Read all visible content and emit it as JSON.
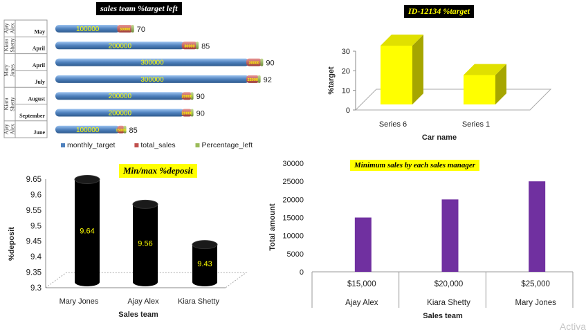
{
  "chart_data": [
    {
      "type": "bar",
      "orientation": "horizontal",
      "stacked": true,
      "title": "sales team %target left",
      "categories": [
        {
          "group": "Ajay Alex",
          "month": "May"
        },
        {
          "group": "Kiara Shetty",
          "month": "April"
        },
        {
          "group": "Mary Jones",
          "month": "April"
        },
        {
          "group": "Mary Jones",
          "month": "July"
        },
        {
          "group": "Kiara Shetty",
          "month": "August"
        },
        {
          "group": "Kiara Shetty",
          "month": "September"
        },
        {
          "group": "Ajay Alex",
          "month": "June"
        }
      ],
      "series": [
        {
          "name": "monthly_target",
          "color": "#4f81bd",
          "values": [
            100000,
            200000,
            300000,
            300000,
            200000,
            200000,
            100000
          ],
          "labels": [
            "100000",
            "200000",
            "300000",
            "300000",
            "200000",
            "200000",
            "100000"
          ]
        },
        {
          "name": "total_sales",
          "color": "#c0504d",
          "values": [
            30000,
            30000,
            30000,
            25000,
            20000,
            20000,
            15000
          ],
          "labels": [
            "30000",
            "30000",
            "30000",
            "25000",
            "20000",
            "20000",
            "15000"
          ]
        },
        {
          "name": "Percentage_left",
          "color": "#9bbb59",
          "values": [
            70,
            85,
            90,
            92,
            90,
            90,
            85
          ],
          "labels": [
            "70",
            "85",
            "90",
            "92",
            "90",
            "90",
            "85"
          ]
        }
      ],
      "legend": "bottom"
    },
    {
      "type": "bar",
      "style": "3d",
      "title": "ID-12134 %target",
      "categories": [
        "Series 6",
        "Series 1"
      ],
      "values": [
        30,
        15
      ],
      "xlabel": "Car name",
      "ylabel": "%target",
      "ylim": [
        0,
        30
      ],
      "yticks": [
        "0",
        "10",
        "20",
        "30"
      ],
      "color": "#ffff00"
    },
    {
      "type": "bar",
      "style": "3d-cylinder",
      "title": "Min/max %deposit",
      "categories": [
        "Mary Jones",
        "Ajay Alex",
        "Kiara Shetty"
      ],
      "values": [
        9.64,
        9.56,
        9.43
      ],
      "labels": [
        "9.64",
        "9.56",
        "9.43"
      ],
      "xlabel": "Sales team",
      "ylabel": "%deposit",
      "ylim": [
        9.3,
        9.65
      ],
      "yticks": [
        "9.3",
        "9.35",
        "9.4",
        "9.45",
        "9.5",
        "9.55",
        "9.6",
        "9.65"
      ],
      "color": "#000000",
      "label_color": "#ffff00"
    },
    {
      "type": "bar",
      "title": "Minimum sales by each sales manager",
      "categories": [
        {
          "amount": "$15,000",
          "manager": "Ajay Alex"
        },
        {
          "amount": "$20,000",
          "manager": "Kiara Shetty"
        },
        {
          "amount": "$25,000",
          "manager": "Mary Jones"
        }
      ],
      "values": [
        15000,
        20000,
        25000
      ],
      "xlabel": "Sales team",
      "ylabel": "Total amount",
      "ylim": [
        0,
        30000
      ],
      "yticks": [
        "0",
        "5000",
        "10000",
        "15000",
        "20000",
        "25000",
        "30000"
      ],
      "color": "#7030a0"
    }
  ],
  "watermark": "Activa"
}
